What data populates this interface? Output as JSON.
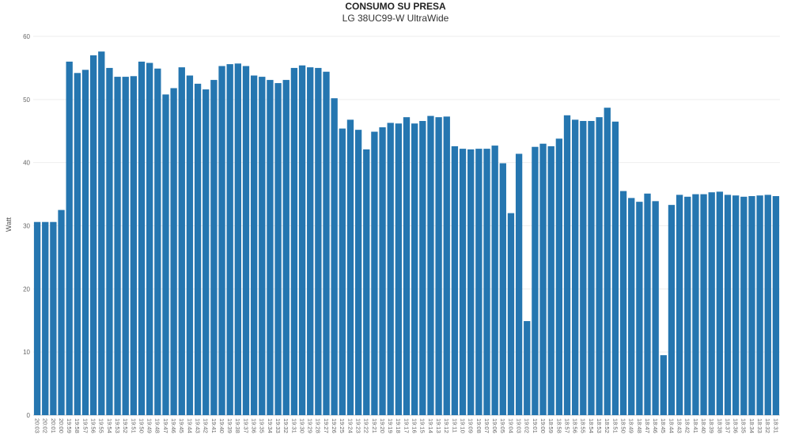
{
  "chart_data": {
    "type": "bar",
    "title": "CONSUMO SU PRESA",
    "subtitle": "LG 38UC99-W UltraWide",
    "xlabel": "",
    "ylabel": "Watt",
    "ylim": [
      0,
      60
    ],
    "yticks": [
      0,
      10,
      20,
      30,
      40,
      50,
      60
    ],
    "grid": true,
    "bar_color": "#2576b0",
    "categories": [
      "20:03",
      "20:02",
      "20:01",
      "20:00",
      "19:59",
      "19:58",
      "19:57",
      "19:56",
      "19:55",
      "19:54",
      "19:53",
      "19:52",
      "19:51",
      "19:50",
      "19:49",
      "19:48",
      "19:47",
      "19:46",
      "19:45",
      "19:44",
      "19:43",
      "19:42",
      "19:41",
      "19:40",
      "19:39",
      "19:38",
      "19:37",
      "19:36",
      "19:35",
      "19:34",
      "19:33",
      "19:32",
      "19:31",
      "19:30",
      "19:29",
      "19:28",
      "19:27",
      "19:26",
      "19:25",
      "19:24",
      "19:23",
      "19:22",
      "19:21",
      "19:20",
      "19:19",
      "19:18",
      "19:17",
      "19:16",
      "19:15",
      "19:14",
      "19:13",
      "19:12",
      "19:11",
      "19:10",
      "19:09",
      "19:08",
      "19:07",
      "19:06",
      "19:05",
      "19:04",
      "19:03",
      "19:02",
      "19:01",
      "19:00",
      "18:59",
      "18:58",
      "18:57",
      "18:56",
      "18:55",
      "18:54",
      "18:53",
      "18:52",
      "18:51",
      "18:50",
      "18:49",
      "18:48",
      "18:47",
      "18:46",
      "18:45",
      "18:44",
      "18:43",
      "18:42",
      "18:41",
      "18:40",
      "18:39",
      "18:38",
      "18:37",
      "18:36",
      "18:35",
      "18:34",
      "18:33",
      "18:32",
      "18:31"
    ],
    "values": [
      30.6,
      30.6,
      30.6,
      32.5,
      56.0,
      54.2,
      54.7,
      57.0,
      57.6,
      55.0,
      53.6,
      53.6,
      53.7,
      56.0,
      55.8,
      54.9,
      50.8,
      51.8,
      55.1,
      53.8,
      52.5,
      51.6,
      53.1,
      55.3,
      55.6,
      55.7,
      55.3,
      53.8,
      53.6,
      53.1,
      52.6,
      53.1,
      55.0,
      55.4,
      55.1,
      55.0,
      54.4,
      50.2,
      45.4,
      46.8,
      45.2,
      42.1,
      44.9,
      45.6,
      46.3,
      46.2,
      47.2,
      46.2,
      46.6,
      47.4,
      47.2,
      47.3,
      42.6,
      42.2,
      42.1,
      42.2,
      42.2,
      42.7,
      39.9,
      32.0,
      41.4,
      14.9,
      42.5,
      43.0,
      42.6,
      43.8,
      47.5,
      46.8,
      46.6,
      46.6,
      47.2,
      48.7,
      46.5,
      35.5,
      34.4,
      33.8,
      35.1,
      33.9,
      9.5,
      33.3,
      34.9,
      34.6,
      35.0,
      35.0,
      35.3,
      35.4,
      34.9,
      34.8,
      34.6,
      34.7,
      34.8,
      34.9,
      34.7
    ]
  }
}
